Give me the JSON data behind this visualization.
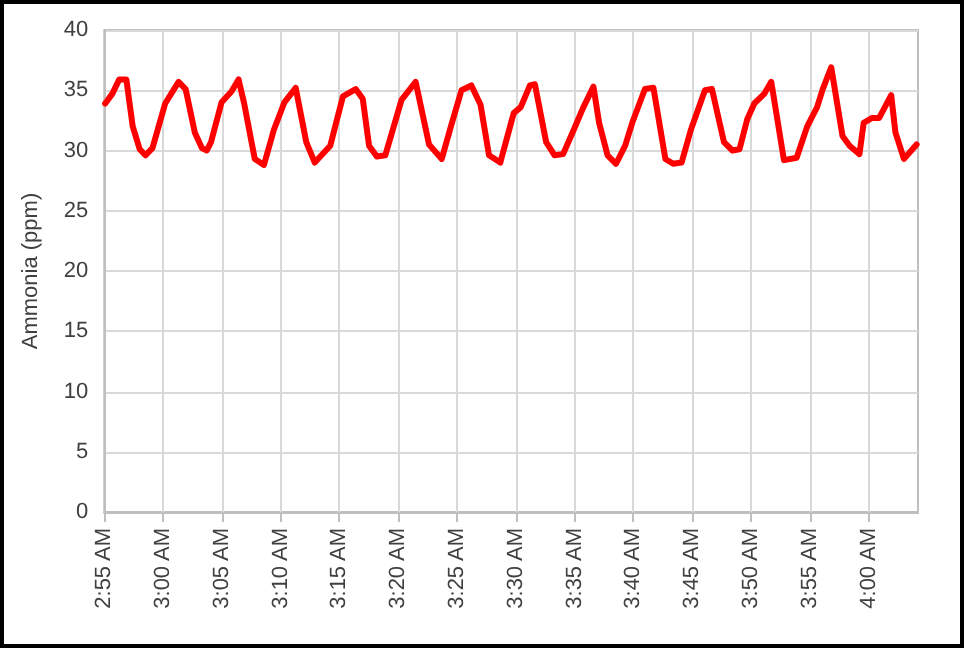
{
  "chart_data": {
    "type": "line",
    "ylabel": "Ammonia (ppm)",
    "xlim": [
      2.9167,
      4.07
    ],
    "ylim": [
      0,
      40
    ],
    "yticks": [
      0,
      5,
      10,
      15,
      20,
      25,
      30,
      35,
      40
    ],
    "xticks": [
      {
        "value": 2.9167,
        "label": "2:55 AM"
      },
      {
        "value": 3,
        "label": "3:00 AM"
      },
      {
        "value": 3.0833,
        "label": "3:05 AM"
      },
      {
        "value": 3.1667,
        "label": "3:10 AM"
      },
      {
        "value": 3.25,
        "label": "3:15 AM"
      },
      {
        "value": 3.3333,
        "label": "3:20 AM"
      },
      {
        "value": 3.4167,
        "label": "3:25 AM"
      },
      {
        "value": 3.5,
        "label": "3:30 AM"
      },
      {
        "value": 3.5833,
        "label": "3:35 AM"
      },
      {
        "value": 3.6667,
        "label": "3:40 AM"
      },
      {
        "value": 3.75,
        "label": "3:45 AM"
      },
      {
        "value": 3.8333,
        "label": "3:50 AM"
      },
      {
        "value": 3.9167,
        "label": "3:55 AM"
      },
      {
        "value": 4,
        "label": "4:00 AM"
      }
    ],
    "grid": true,
    "marker": "none",
    "line_style": "solid",
    "series": [
      {
        "color": "#ff0000",
        "x": [
          2.918,
          2.928,
          2.938,
          2.948,
          2.957,
          2.967,
          2.975,
          2.985,
          3.003,
          3.022,
          3.032,
          3.045,
          3.055,
          3.062,
          3.068,
          3.083,
          3.097,
          3.107,
          3.115,
          3.13,
          3.143,
          3.157,
          3.172,
          3.188,
          3.203,
          3.215,
          3.237,
          3.255,
          3.273,
          3.283,
          3.292,
          3.303,
          3.315,
          3.338,
          3.358,
          3.377,
          3.395,
          3.408,
          3.423,
          3.437,
          3.45,
          3.462,
          3.478,
          3.497,
          3.507,
          3.52,
          3.527,
          3.543,
          3.555,
          3.567,
          3.582,
          3.595,
          3.61,
          3.618,
          3.63,
          3.642,
          3.655,
          3.665,
          3.683,
          3.695,
          3.712,
          3.723,
          3.735,
          3.748,
          3.768,
          3.778,
          3.795,
          3.807,
          3.817,
          3.828,
          3.838,
          3.852,
          3.862,
          3.88,
          3.898,
          3.913,
          3.927,
          3.935,
          3.947,
          3.963,
          3.973,
          3.987,
          3.993,
          4.005,
          4.015,
          4.032,
          4.038,
          4.05,
          4.068
        ],
        "values": [
          33.9,
          34.7,
          35.9,
          35.9,
          32.0,
          30.1,
          29.6,
          30.2,
          33.9,
          35.7,
          35.1,
          31.5,
          30.2,
          30.0,
          30.7,
          34.0,
          34.9,
          35.9,
          33.9,
          29.3,
          28.8,
          31.7,
          34.0,
          35.2,
          30.7,
          29.0,
          30.4,
          34.5,
          35.1,
          34.3,
          30.4,
          29.5,
          29.6,
          34.2,
          35.7,
          30.5,
          29.3,
          32.0,
          35.0,
          35.4,
          33.8,
          29.6,
          29.0,
          33.1,
          33.6,
          35.4,
          35.5,
          30.7,
          29.6,
          29.7,
          31.7,
          33.5,
          35.3,
          32.3,
          29.6,
          28.9,
          30.4,
          32.3,
          35.1,
          35.2,
          29.3,
          28.9,
          29.0,
          31.7,
          35.0,
          35.1,
          30.7,
          30.0,
          30.1,
          32.6,
          33.9,
          34.7,
          35.7,
          29.2,
          29.4,
          32.0,
          33.6,
          35.1,
          36.9,
          31.2,
          30.4,
          29.7,
          32.3,
          32.7,
          32.7,
          34.6,
          31.5,
          29.3,
          30.5
        ]
      }
    ]
  }
}
